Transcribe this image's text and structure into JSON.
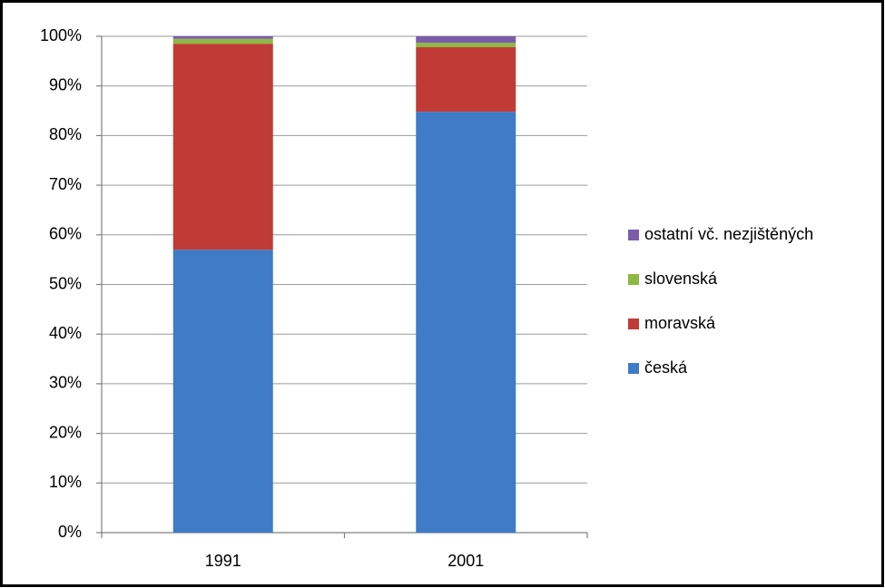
{
  "chart_data": {
    "type": "stacked-bar",
    "categories": [
      "1991",
      "2001"
    ],
    "series": [
      {
        "name": "česká",
        "color": "#3f7bc7",
        "values": [
          57,
          84.8
        ]
      },
      {
        "name": "moravská",
        "color": "#c03b36",
        "values": [
          41.5,
          13
        ]
      },
      {
        "name": "slovenská",
        "color": "#8db843",
        "values": [
          1,
          0.9
        ]
      },
      {
        "name": "ostatní vč. nezjištěných",
        "color": "#7b5ca8",
        "values": [
          0.5,
          1.3
        ]
      }
    ],
    "ylim": [
      0,
      100
    ],
    "yticks": [
      {
        "value": 0,
        "label": "0%"
      },
      {
        "value": 10,
        "label": "10%"
      },
      {
        "value": 20,
        "label": "20%"
      },
      {
        "value": 30,
        "label": "30%"
      },
      {
        "value": 40,
        "label": "40%"
      },
      {
        "value": 50,
        "label": "50%"
      },
      {
        "value": 60,
        "label": "60%"
      },
      {
        "value": 70,
        "label": "70%"
      },
      {
        "value": 80,
        "label": "80%"
      },
      {
        "value": 90,
        "label": "90%"
      },
      {
        "value": 100,
        "label": "100%"
      }
    ],
    "grid": true,
    "legend": "right"
  }
}
